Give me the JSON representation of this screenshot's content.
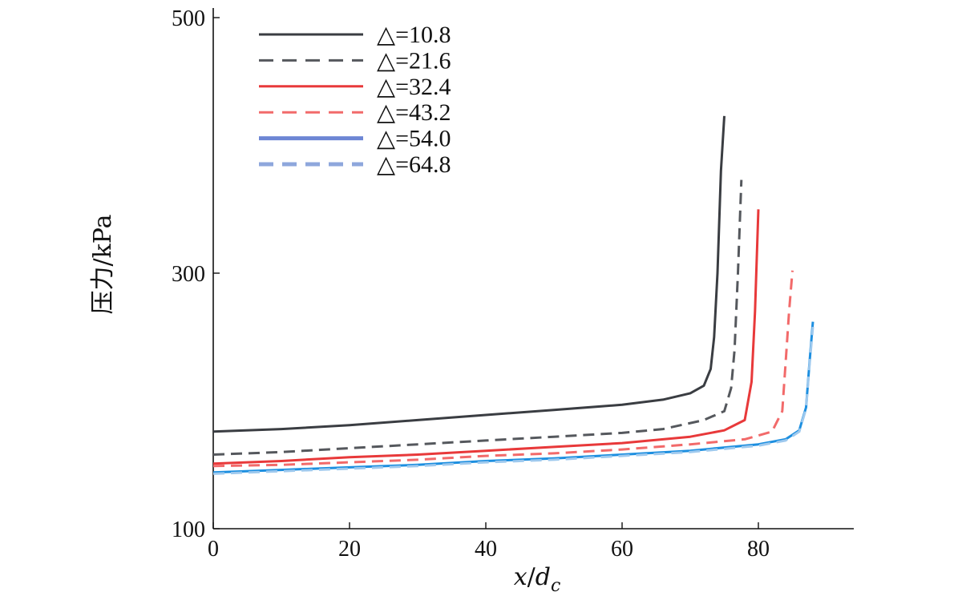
{
  "chart_data": {
    "type": "line",
    "xlabel": "x/dc",
    "xlabel_parts": {
      "x": "x",
      "slash": "/",
      "d": "d",
      "sub": "c"
    },
    "ylabel": "压力/kPa",
    "xlim": [
      0,
      94
    ],
    "ylim": [
      100,
      500
    ],
    "xticks": [
      0,
      20,
      40,
      60,
      80
    ],
    "yticks": [
      100,
      300,
      500
    ],
    "grid": false,
    "legend_position": "top-left",
    "series": [
      {
        "name": "△=10.8",
        "color": "#3a3d42",
        "dash": "solid",
        "width": 3,
        "points": [
          [
            0,
            176
          ],
          [
            10,
            178
          ],
          [
            20,
            181
          ],
          [
            30,
            185
          ],
          [
            40,
            189
          ],
          [
            50,
            193
          ],
          [
            60,
            197
          ],
          [
            66,
            201
          ],
          [
            70,
            206
          ],
          [
            72,
            212
          ],
          [
            73,
            225
          ],
          [
            73.5,
            250
          ],
          [
            74,
            300
          ],
          [
            74.5,
            380
          ],
          [
            75,
            423
          ]
        ]
      },
      {
        "name": "△=21.6",
        "color": "#55585d",
        "dash": "dashed",
        "width": 3,
        "points": [
          [
            0,
            158
          ],
          [
            10,
            160
          ],
          [
            20,
            163
          ],
          [
            30,
            166
          ],
          [
            40,
            169
          ],
          [
            50,
            172
          ],
          [
            60,
            175
          ],
          [
            66,
            178
          ],
          [
            72,
            185
          ],
          [
            75,
            192
          ],
          [
            76,
            210
          ],
          [
            76.5,
            240
          ],
          [
            77,
            300
          ],
          [
            77.5,
            373
          ]
        ]
      },
      {
        "name": "△=32.4",
        "color": "#e8393a",
        "dash": "solid",
        "width": 3,
        "points": [
          [
            0,
            151
          ],
          [
            10,
            153
          ],
          [
            20,
            156
          ],
          [
            30,
            158
          ],
          [
            40,
            161
          ],
          [
            50,
            164
          ],
          [
            60,
            167
          ],
          [
            70,
            172
          ],
          [
            75,
            177
          ],
          [
            78,
            185
          ],
          [
            79,
            215
          ],
          [
            79.5,
            270
          ],
          [
            80,
            350
          ]
        ]
      },
      {
        "name": "△=43.2",
        "color": "#f26a6a",
        "dash": "dashed",
        "width": 3,
        "points": [
          [
            0,
            149
          ],
          [
            10,
            150
          ],
          [
            20,
            152
          ],
          [
            30,
            154
          ],
          [
            40,
            157
          ],
          [
            50,
            159
          ],
          [
            60,
            162
          ],
          [
            70,
            166
          ],
          [
            78,
            170
          ],
          [
            82,
            176
          ],
          [
            83.5,
            192
          ],
          [
            84,
            230
          ],
          [
            84.5,
            270
          ],
          [
            85,
            302
          ]
        ]
      },
      {
        "name": "△=54.0",
        "color": "#1d8fe0",
        "dash": "solid",
        "width": 3,
        "points": [
          [
            0,
            144
          ],
          [
            10,
            146
          ],
          [
            20,
            148
          ],
          [
            30,
            150
          ],
          [
            40,
            153
          ],
          [
            50,
            155
          ],
          [
            60,
            158
          ],
          [
            70,
            161
          ],
          [
            80,
            166
          ],
          [
            84,
            170
          ],
          [
            86,
            177
          ],
          [
            87,
            195
          ],
          [
            87.5,
            230
          ],
          [
            88,
            262
          ]
        ]
      },
      {
        "name": "△=64.8",
        "color": "#9ec9ee",
        "dash": "dashed",
        "width": 3,
        "points": [
          [
            0,
            143
          ],
          [
            10,
            145
          ],
          [
            20,
            147
          ],
          [
            30,
            149
          ],
          [
            40,
            152
          ],
          [
            50,
            154
          ],
          [
            60,
            157
          ],
          [
            70,
            160
          ],
          [
            80,
            165
          ],
          [
            84,
            169
          ],
          [
            86,
            176
          ],
          [
            87,
            194
          ],
          [
            87.5,
            228
          ],
          [
            88,
            258
          ]
        ]
      }
    ],
    "legend_colors": {
      "△=54.0": "#6d86d4",
      "△=64.8": "#8ea7dc"
    }
  }
}
